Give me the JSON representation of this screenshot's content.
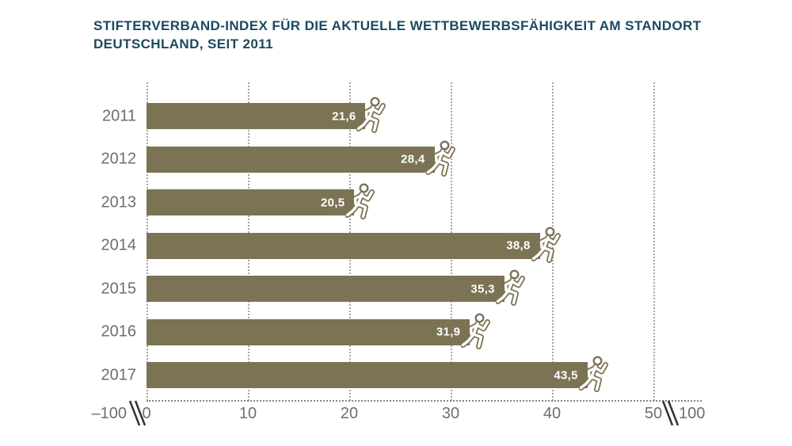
{
  "title_lines": [
    "STIFTERVERBAND-INDEX FÜR DIE AKTUELLE WETTBEWERBSFÄHIGKEIT AM STANDORT",
    "DEUTSCHLAND, SEIT 2011"
  ],
  "chart_data": {
    "type": "bar",
    "orientation": "horizontal",
    "title": "Stifterverband-Index für die aktuelle Wettbewerbsfähigkeit am Standort Deutschland, seit 2011",
    "categories": [
      "2011",
      "2012",
      "2013",
      "2014",
      "2015",
      "2016",
      "2017"
    ],
    "values": [
      21.6,
      28.4,
      20.5,
      38.8,
      35.3,
      31.9,
      43.5
    ],
    "value_labels": [
      "21,6",
      "28,4",
      "20,5",
      "38,8",
      "35,3",
      "31,9",
      "43,5"
    ],
    "xlabel": "",
    "ylabel": "",
    "x_axis": {
      "ticks": [
        0,
        10,
        20,
        30,
        40,
        50
      ],
      "tick_labels": [
        "0",
        "10",
        "20",
        "30",
        "40",
        "50"
      ],
      "left_edge_label": "–100",
      "right_edge_label": "100",
      "axis_breaks": true,
      "xlim": [
        0,
        55
      ]
    },
    "grid": "vertical-dotted",
    "legend": "none",
    "bar_end_icon": "runner-icon"
  },
  "colors": {
    "background": "#ffffff",
    "bar": "#7c7354",
    "title_text": "#1a4a5e",
    "axis_text": "#6d6e71",
    "gridline": "#a3a5a8",
    "axis_line": "#7d878f",
    "break_mark": "#2f343a",
    "value_text": "#ffffff"
  }
}
